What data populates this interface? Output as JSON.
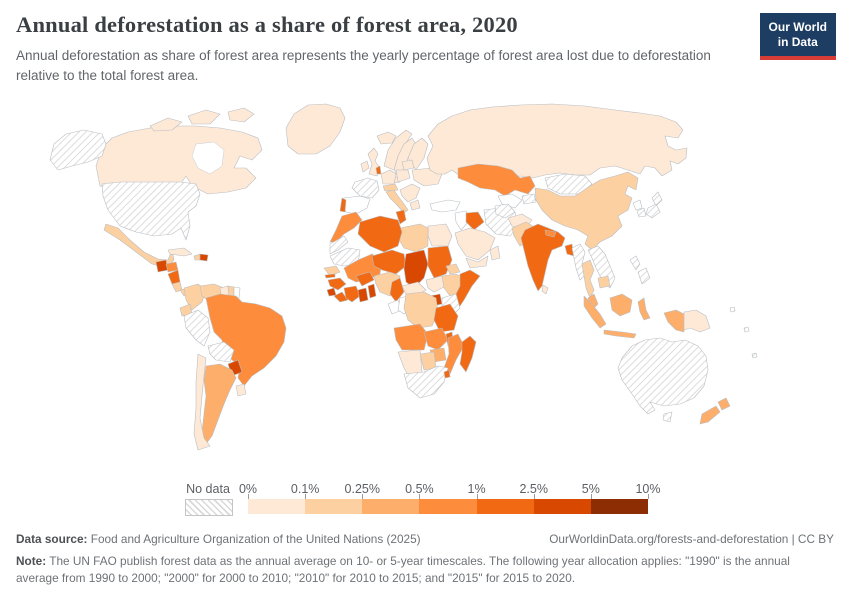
{
  "header": {
    "title": "Annual deforestation as a share of forest area, 2020",
    "subtitle": "Annual deforestation as share of forest area represents the yearly percentage of forest area lost due to deforestation relative to the total forest area."
  },
  "logo": {
    "line1": "Our World",
    "line2": "in Data",
    "bg": "#1d3d63",
    "accent": "#d73c37"
  },
  "legend": {
    "no_data_label": "No data",
    "tick_labels": [
      "0%",
      "0.1%",
      "0.25%",
      "0.5%",
      "1%",
      "2.5%",
      "5%",
      "10%"
    ],
    "bins": [
      "0-0.1%",
      "0.1-0.25%",
      "0.25-0.5%",
      "0.5-1%",
      "1-2.5%",
      "2.5-5%",
      "5-10%"
    ],
    "colors": [
      "#fee8d6",
      "#fdd0a2",
      "#fdae6b",
      "#fd8d3c",
      "#f16913",
      "#d94801",
      "#8c2d04"
    ],
    "zero_color": "#ffffff",
    "no_data_hatch_color": "#d9d9d9"
  },
  "chart_data": {
    "type": "choropleth",
    "title": "Annual deforestation as a share of forest area",
    "year": "2020",
    "unit": "% of forest area lost per year",
    "bins": [
      "0-0.1%",
      "0.1-0.25%",
      "0.25-0.5%",
      "0.5-1%",
      "1-2.5%",
      "2.5-5%",
      "5-10%"
    ],
    "countries": [
      {
        "id": "canada",
        "name": "Canada",
        "bin": "0-0.1%"
      },
      {
        "id": "greenland",
        "name": "Greenland",
        "bin": "0-0.1%"
      },
      {
        "id": "usa",
        "name": "United States",
        "bin": "No data"
      },
      {
        "id": "mexico",
        "name": "Mexico",
        "bin": "0.1-0.25%"
      },
      {
        "id": "guatemala",
        "name": "Guatemala",
        "bin": "2.5-5%"
      },
      {
        "id": "honduras",
        "name": "Honduras",
        "bin": "0.5-1%"
      },
      {
        "id": "nicaragua",
        "name": "Nicaragua",
        "bin": "1-2.5%"
      },
      {
        "id": "costarica",
        "name": "Costa Rica",
        "bin": "0.1-0.25%"
      },
      {
        "id": "panama",
        "name": "Panama",
        "bin": "0.1-0.25%"
      },
      {
        "id": "cuba",
        "name": "Cuba",
        "bin": "0-0.1%"
      },
      {
        "id": "haiti",
        "name": "Haiti",
        "bin": "0.1-0.25%"
      },
      {
        "id": "dominican",
        "name": "Dominican Republic",
        "bin": "2.5-5%"
      },
      {
        "id": "colombia",
        "name": "Colombia",
        "bin": "0.1-0.25%"
      },
      {
        "id": "venezuela",
        "name": "Venezuela",
        "bin": "0.1-0.25%"
      },
      {
        "id": "guyana",
        "name": "Guyana",
        "bin": "0-0.1%"
      },
      {
        "id": "suriname",
        "name": "Suriname",
        "bin": "0.1-0.25%"
      },
      {
        "id": "frguiana",
        "name": "French Guiana",
        "bin": "0%"
      },
      {
        "id": "ecuador",
        "name": "Ecuador",
        "bin": "0.1-0.25%"
      },
      {
        "id": "peru",
        "name": "Peru",
        "bin": "No data"
      },
      {
        "id": "brazil",
        "name": "Brazil",
        "bin": "0.5-1%"
      },
      {
        "id": "bolivia",
        "name": "Bolivia",
        "bin": "No data"
      },
      {
        "id": "paraguay",
        "name": "Paraguay",
        "bin": "2.5-5%"
      },
      {
        "id": "argentina",
        "name": "Argentina",
        "bin": "0.25-0.5%"
      },
      {
        "id": "chile",
        "name": "Chile",
        "bin": "0-0.1%"
      },
      {
        "id": "uruguay",
        "name": "Uruguay",
        "bin": "0-0.1%"
      },
      {
        "id": "iceland",
        "name": "Iceland",
        "bin": "0-0.1%"
      },
      {
        "id": "uk",
        "name": "United Kingdom",
        "bin": "0-0.1%"
      },
      {
        "id": "ireland",
        "name": "Ireland",
        "bin": "0-0.1%"
      },
      {
        "id": "norway",
        "name": "Norway",
        "bin": "0-0.1%"
      },
      {
        "id": "sweden",
        "name": "Sweden",
        "bin": "0-0.1%"
      },
      {
        "id": "finland",
        "name": "Finland",
        "bin": "0-0.1%"
      },
      {
        "id": "denmark",
        "name": "Denmark",
        "bin": "0-0.1%"
      },
      {
        "id": "france",
        "name": "France",
        "bin": "No data"
      },
      {
        "id": "spain",
        "name": "Spain",
        "bin": "0%"
      },
      {
        "id": "portugal",
        "name": "Portugal",
        "bin": "1-2.5%"
      },
      {
        "id": "netherlands",
        "name": "Netherlands",
        "bin": "1-2.5%"
      },
      {
        "id": "germany",
        "name": "Germany",
        "bin": "0-0.1%"
      },
      {
        "id": "poland",
        "name": "Poland",
        "bin": "0-0.1%"
      },
      {
        "id": "baltics",
        "name": "Baltic states",
        "bin": "0-0.1%"
      },
      {
        "id": "alps",
        "name": "Austria / Switzerland",
        "bin": "0.1-0.25%"
      },
      {
        "id": "italy",
        "name": "Italy",
        "bin": "0.1-0.25%"
      },
      {
        "id": "balkans",
        "name": "Balkans / Romania",
        "bin": "0-0.1%"
      },
      {
        "id": "greece",
        "name": "Greece",
        "bin": "0-0.1%"
      },
      {
        "id": "ukraine",
        "name": "Ukraine",
        "bin": "0-0.1%"
      },
      {
        "id": "russia",
        "name": "Russia",
        "bin": "0-0.1%"
      },
      {
        "id": "turkey",
        "name": "Turkey",
        "bin": "0%"
      },
      {
        "id": "syria",
        "name": "Syria / Levant",
        "bin": "0%"
      },
      {
        "id": "iraq",
        "name": "Iraq",
        "bin": "1-2.5%"
      },
      {
        "id": "iran",
        "name": "Iran",
        "bin": "No data"
      },
      {
        "id": "saudi",
        "name": "Saudi Arabia",
        "bin": "0-0.1%"
      },
      {
        "id": "yemen",
        "name": "Yemen",
        "bin": "0-0.1%"
      },
      {
        "id": "oman",
        "name": "Oman",
        "bin": "0-0.1%"
      },
      {
        "id": "kazakhstan",
        "name": "Kazakhstan",
        "bin": "0.5-1%"
      },
      {
        "id": "uzbekistan",
        "name": "Uzbekistan",
        "bin": "0%"
      },
      {
        "id": "turkmenistan",
        "name": "Turkmenistan",
        "bin": "No data"
      },
      {
        "id": "kyrgyztajik",
        "name": "Kyrgyzstan / Tajikistan",
        "bin": "No data"
      },
      {
        "id": "afghanistan",
        "name": "Afghanistan",
        "bin": "0-0.1%"
      },
      {
        "id": "pakistan",
        "name": "Pakistan",
        "bin": "0.1-0.25%"
      },
      {
        "id": "india",
        "name": "India",
        "bin": "1-2.5%"
      },
      {
        "id": "nepal",
        "name": "Nepal",
        "bin": "0.5-1%"
      },
      {
        "id": "bangladesh",
        "name": "Bangladesh",
        "bin": "1-2.5%"
      },
      {
        "id": "srilanka",
        "name": "Sri Lanka",
        "bin": "0-0.1%"
      },
      {
        "id": "mongolia",
        "name": "Mongolia",
        "bin": "No data"
      },
      {
        "id": "china",
        "name": "China",
        "bin": "0.1-0.25%"
      },
      {
        "id": "nkorea",
        "name": "North Korea",
        "bin": "0%"
      },
      {
        "id": "skorea",
        "name": "South Korea",
        "bin": "No data"
      },
      {
        "id": "japan",
        "name": "Japan",
        "bin": "No data"
      },
      {
        "id": "myanmar",
        "name": "Myanmar",
        "bin": "No data"
      },
      {
        "id": "thailand",
        "name": "Thailand",
        "bin": "0.1-0.25%"
      },
      {
        "id": "indochina",
        "name": "Laos / Vietnam",
        "bin": "No data"
      },
      {
        "id": "cambodia",
        "name": "Cambodia",
        "bin": "0.1-0.25%"
      },
      {
        "id": "malaysia",
        "name": "Malaysia",
        "bin": "0.25-0.5%"
      },
      {
        "id": "indonesia",
        "name": "Indonesia",
        "bin": "0.25-0.5%"
      },
      {
        "id": "philippines",
        "name": "Philippines",
        "bin": "No data"
      },
      {
        "id": "png",
        "name": "Papua New Guinea",
        "bin": "0-0.1%"
      },
      {
        "id": "australia",
        "name": "Australia",
        "bin": "No data"
      },
      {
        "id": "newzealand",
        "name": "New Zealand",
        "bin": "0.25-0.5%"
      },
      {
        "id": "pacific",
        "name": "Pacific islands",
        "bin": "No data"
      },
      {
        "id": "morocco",
        "name": "Morocco",
        "bin": "0.5-1%"
      },
      {
        "id": "wsahara",
        "name": "Western Sahara",
        "bin": "No data"
      },
      {
        "id": "mauritania",
        "name": "Mauritania",
        "bin": "No data"
      },
      {
        "id": "senegal",
        "name": "Senegal",
        "bin": "0.1-0.25%"
      },
      {
        "id": "gambia",
        "name": "Gambia",
        "bin": "1-2.5%"
      },
      {
        "id": "guinea",
        "name": "Guinea",
        "bin": "1-2.5%"
      },
      {
        "id": "sierraleone",
        "name": "Sierra Leone",
        "bin": "2.5-5%"
      },
      {
        "id": "liberia",
        "name": "Liberia",
        "bin": "1-2.5%"
      },
      {
        "id": "ivorycoast",
        "name": "Cote d'Ivoire",
        "bin": "1-2.5%"
      },
      {
        "id": "ghana",
        "name": "Ghana",
        "bin": "2.5-5%"
      },
      {
        "id": "benin",
        "name": "Benin / Togo",
        "bin": "2.5-5%"
      },
      {
        "id": "burkina",
        "name": "Burkina Faso",
        "bin": "1-2.5%"
      },
      {
        "id": "mali",
        "name": "Mali",
        "bin": "0.5-1%"
      },
      {
        "id": "niger",
        "name": "Niger",
        "bin": "1-2.5%"
      },
      {
        "id": "nigeria",
        "name": "Nigeria",
        "bin": "0.1-0.25%"
      },
      {
        "id": "chad",
        "name": "Chad",
        "bin": "2.5-5%"
      },
      {
        "id": "sudan",
        "name": "Sudan",
        "bin": "1-2.5%"
      },
      {
        "id": "southsudan",
        "name": "South Sudan",
        "bin": "0-0.1%"
      },
      {
        "id": "eritrea",
        "name": "Eritrea",
        "bin": "0.1-0.25%"
      },
      {
        "id": "ethiopia",
        "name": "Ethiopia",
        "bin": "0.1-0.25%"
      },
      {
        "id": "somalia",
        "name": "Somalia",
        "bin": "1-2.5%"
      },
      {
        "id": "kenya",
        "name": "Kenya",
        "bin": "No data"
      },
      {
        "id": "uganda",
        "name": "Uganda",
        "bin": "2.5-5%"
      },
      {
        "id": "tanzania",
        "name": "Tanzania",
        "bin": "1-2.5%"
      },
      {
        "id": "car",
        "name": "Central African Republic",
        "bin": "0-0.1%"
      },
      {
        "id": "cameroon",
        "name": "Cameroon",
        "bin": "1-2.5%"
      },
      {
        "id": "gabon",
        "name": "Gabon",
        "bin": "0%"
      },
      {
        "id": "congo",
        "name": "Congo",
        "bin": "0%"
      },
      {
        "id": "drc",
        "name": "Democratic Republic of Congo",
        "bin": "0.1-0.25%"
      },
      {
        "id": "angola",
        "name": "Angola",
        "bin": "0.5-1%"
      },
      {
        "id": "zambia",
        "name": "Zambia",
        "bin": "0.5-1%"
      },
      {
        "id": "malawi",
        "name": "Malawi",
        "bin": "1-2.5%"
      },
      {
        "id": "mozambique",
        "name": "Mozambique",
        "bin": "0.5-1%"
      },
      {
        "id": "zimbabwe",
        "name": "Zimbabwe",
        "bin": "0.25-0.5%"
      },
      {
        "id": "botswana",
        "name": "Botswana",
        "bin": "0.1-0.25%"
      },
      {
        "id": "namibia",
        "name": "Namibia",
        "bin": "0-0.1%"
      },
      {
        "id": "southafrica",
        "name": "South Africa",
        "bin": "No data"
      },
      {
        "id": "eswatini",
        "name": "Eswatini",
        "bin": "1-2.5%"
      },
      {
        "id": "madagascar",
        "name": "Madagascar",
        "bin": "1-2.5%"
      },
      {
        "id": "egypt",
        "name": "Egypt",
        "bin": "0-0.1%"
      },
      {
        "id": "libya",
        "name": "Libya",
        "bin": "0.1-0.25%"
      },
      {
        "id": "algeria",
        "name": "Algeria",
        "bin": "1-2.5%"
      },
      {
        "id": "tunisia",
        "name": "Tunisia",
        "bin": "1-2.5%"
      }
    ]
  },
  "footer": {
    "datasource_label": "Data source:",
    "datasource": "Food and Agriculture Organization of the United Nations (2025)",
    "link": "OurWorldinData.org/forests-and-deforestation | CC BY",
    "note_label": "Note:",
    "note": "The UN FAO publish forest data as the annual average on 10- or 5-year timescales. The following year allocation applies: \"1990\" is the annual average from 1990 to 2000; \"2000\" for 2000 to 2010; \"2010\" for 2010 to 2015; and \"2015\" for 2015 to 2020."
  }
}
